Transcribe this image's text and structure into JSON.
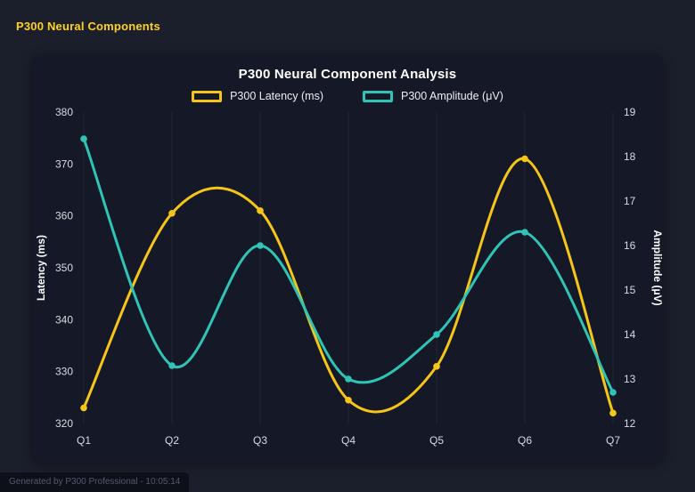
{
  "page": {
    "title": "P300 Neural Components",
    "footer": "Generated by P300 Professional - 10:05:14"
  },
  "chart_data": {
    "type": "line",
    "title": "P300 Neural Component Analysis",
    "categories": [
      "Q1",
      "Q2",
      "Q3",
      "Q4",
      "Q5",
      "Q6",
      "Q7"
    ],
    "series": [
      {
        "name": "P300 Latency (ms)",
        "axis": "left",
        "color": "#f5c518",
        "values": [
          323,
          360.5,
          361,
          324.5,
          331,
          371,
          322
        ]
      },
      {
        "name": "P300 Amplitude (μV)",
        "axis": "right",
        "color": "#2ec4b6",
        "values": [
          18.4,
          13.3,
          16.0,
          13.0,
          14.0,
          16.3,
          12.7
        ]
      }
    ],
    "left_axis": {
      "label": "Latency (ms)",
      "min": 320,
      "max": 380,
      "step": 10
    },
    "right_axis": {
      "label": "Amplitude (μV)",
      "min": 12,
      "max": 19,
      "step": 1
    },
    "legend_position": "top",
    "grid": "vertical",
    "colors": {
      "page_bg": "#1b1f2b",
      "card_bg": "#141827",
      "gridline": "rgba(255,255,255,0.07)",
      "tick_text": "#d9dbe2",
      "title_text": "#ffffff",
      "accent_yellow": "#f5c518",
      "accent_teal": "#2ec4b6"
    }
  }
}
